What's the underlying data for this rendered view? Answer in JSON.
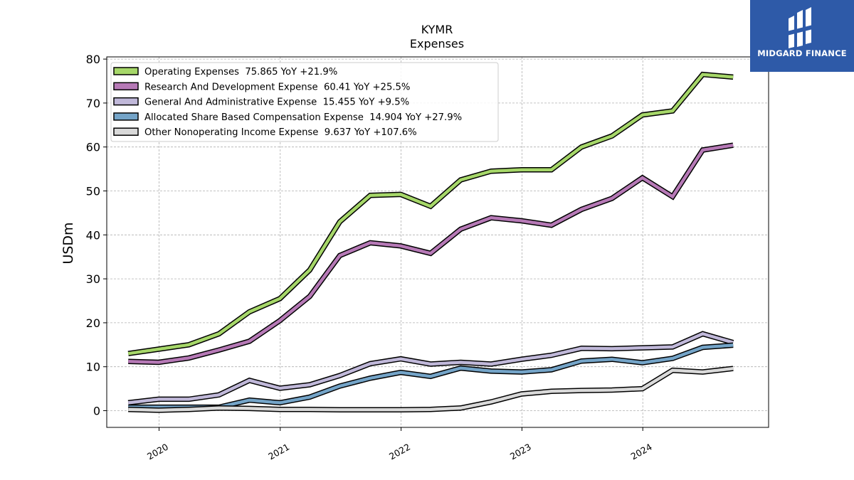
{
  "chart_data": {
    "type": "line",
    "title": "KYMR",
    "subtitle": "Expenses",
    "xlabel": "",
    "ylabel": "USDm",
    "ylim": [
      -3.8,
      80.5
    ],
    "yticks": [
      0,
      10,
      20,
      30,
      40,
      50,
      60,
      70,
      80
    ],
    "xlim": [
      "2019-07-27",
      "2025-01-15"
    ],
    "xticks": [
      {
        "date": "2020-01-01",
        "label": "2020"
      },
      {
        "date": "2021-01-01",
        "label": "2021"
      },
      {
        "date": "2022-01-01",
        "label": "2022"
      },
      {
        "date": "2023-01-01",
        "label": "2023"
      },
      {
        "date": "2024-01-01",
        "label": "2024"
      }
    ],
    "grid": true,
    "legend_position": "top-left",
    "x": [
      "2019-09-30",
      "2019-12-31",
      "2020-03-31",
      "2020-06-30",
      "2020-09-30",
      "2020-12-31",
      "2021-03-31",
      "2021-06-30",
      "2021-09-30",
      "2021-12-31",
      "2022-03-31",
      "2022-06-30",
      "2022-09-30",
      "2022-12-31",
      "2023-03-31",
      "2023-06-30",
      "2023-09-30",
      "2023-12-31",
      "2024-03-31",
      "2024-06-30",
      "2024-09-30"
    ],
    "series": [
      {
        "name": "Operating Expenses  75.865 YoY +21.9%",
        "color": "#a6d769",
        "values": [
          13.0,
          14.0,
          15.0,
          17.5,
          22.5,
          25.5,
          32.0,
          43.0,
          49.0,
          49.2,
          46.5,
          52.5,
          54.5,
          54.8,
          54.8,
          60.0,
          62.5,
          67.3,
          68.2,
          76.5,
          75.9
        ]
      },
      {
        "name": "Research And Development Expense  60.41 YoY +25.5%",
        "color": "#b679b6",
        "values": [
          11.2,
          11.0,
          12.0,
          13.8,
          15.8,
          20.5,
          26.0,
          35.3,
          38.2,
          37.5,
          35.8,
          41.3,
          43.9,
          43.2,
          42.2,
          45.8,
          48.3,
          53.0,
          48.7,
          59.3,
          60.4
        ]
      },
      {
        "name": "General And Administrative Expense  15.455 YoY +9.5%",
        "color": "#c0b8d9",
        "values": [
          1.8,
          2.6,
          2.6,
          3.6,
          6.9,
          5.1,
          5.9,
          8.0,
          10.7,
          11.8,
          10.6,
          11.0,
          10.6,
          11.7,
          12.6,
          14.2,
          14.1,
          14.3,
          14.5,
          17.5,
          15.5
        ]
      },
      {
        "name": "Allocated Share Based Compensation Expense  14.904 YoY +27.9%",
        "color": "#74a4c8",
        "values": [
          0.8,
          0.8,
          0.8,
          0.8,
          2.4,
          1.8,
          3.1,
          5.6,
          7.4,
          8.7,
          7.8,
          9.7,
          9.0,
          8.8,
          9.3,
          11.3,
          11.7,
          10.9,
          11.9,
          14.4,
          14.9
        ]
      },
      {
        "name": "Other Nonoperating Income Expense  9.637 YoY +107.6%",
        "color": "#d9d9d9",
        "values": [
          0.3,
          0.1,
          0.3,
          0.6,
          0.5,
          0.3,
          0.3,
          0.2,
          0.2,
          0.2,
          0.3,
          0.6,
          2.0,
          3.8,
          4.4,
          4.6,
          4.7,
          5.0,
          9.2,
          8.8,
          9.6
        ]
      }
    ]
  },
  "logo": {
    "text": "MIDGARD FINANCE",
    "background": "#2e5aa8"
  }
}
